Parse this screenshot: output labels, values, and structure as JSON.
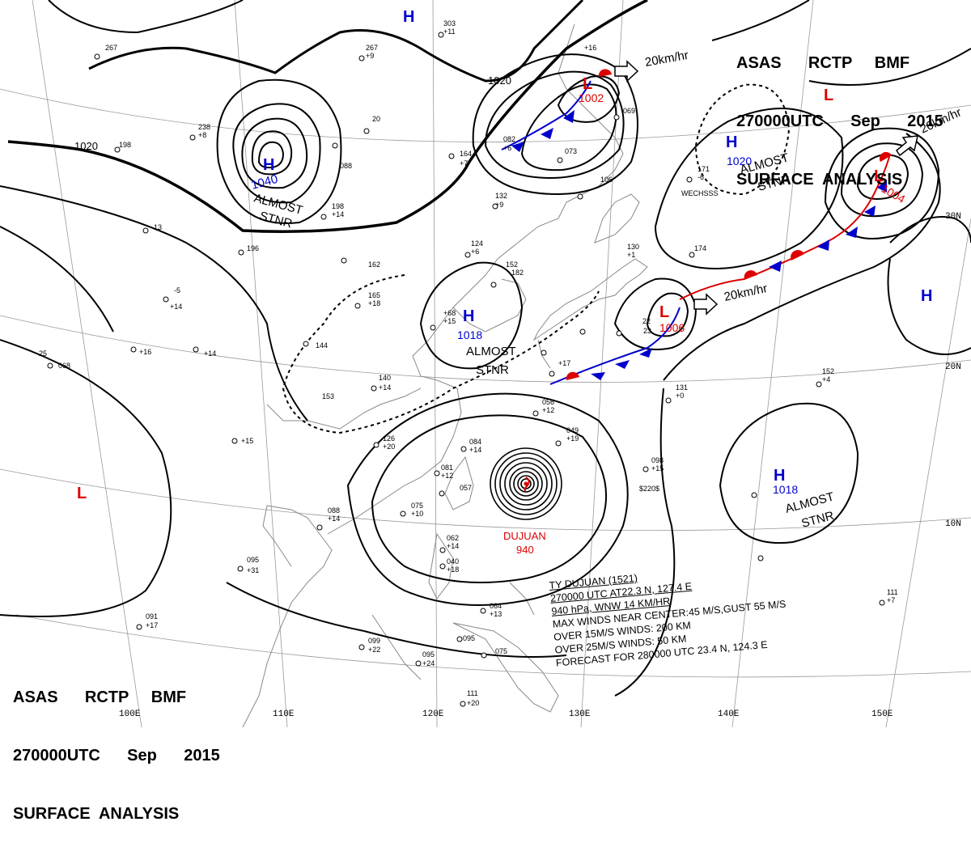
{
  "header": {
    "line1": "ASAS      RCTP     BMF",
    "line2": "270000UTC      Sep      2015",
    "line3": "SURFACE  ANALYSIS"
  },
  "typhoon": {
    "name_label": "DUJUAN",
    "pressure_label": "940",
    "info": [
      "TY  DUJUAN  (1521)",
      "270000 UTC  AT22.3 N, 127.4 E",
      "940 hPa, WNW  14 KM/HR",
      "MAX WINDS NEAR CENTER:45 M/S,GUST 55 M/S",
      "OVER 15M/S WINDS: 200 KM",
      "OVER 25M/S WINDS: 50 KM",
      "FORECAST FOR 280000 UTC 23.4 N, 124.3 E"
    ]
  },
  "pressure_systems": [
    {
      "type": "H",
      "value": "1040",
      "note": "ALMOST\nSTNR",
      "color": "#0000cc"
    },
    {
      "type": "H",
      "value": "1018",
      "note": "ALMOST\nSTNR",
      "color": "#0000cc"
    },
    {
      "type": "H",
      "value": "1020",
      "note": "ALMOST\nSTNR",
      "color": "#0000cc"
    },
    {
      "type": "H",
      "value": "1018",
      "note": "ALMOST\nSTNR",
      "color": "#0000cc"
    },
    {
      "type": "H",
      "value": "",
      "note": "",
      "color": "#0000cc"
    },
    {
      "type": "H",
      "value": "",
      "note": "",
      "color": "#0000cc"
    },
    {
      "type": "L",
      "value": "1002",
      "note": "",
      "color": "#dd0000"
    },
    {
      "type": "L",
      "value": "1004",
      "note": "",
      "color": "#dd0000"
    },
    {
      "type": "L",
      "value": "1006",
      "note": "",
      "color": "#dd0000"
    },
    {
      "type": "L",
      "value": "",
      "note": "",
      "color": "#dd0000"
    },
    {
      "type": "L",
      "value": "",
      "note": "",
      "color": "#dd0000"
    }
  ],
  "isobar_labels": [
    "1020",
    "1020"
  ],
  "motion_labels": [
    "20km/hr",
    "20km/hr",
    "20km/hr"
  ],
  "longitude_labels": [
    "100E",
    "110E",
    "120E",
    "130E",
    "140E",
    "150E"
  ],
  "latitude_labels": [
    "30N",
    "20N",
    "10N"
  ],
  "colors": {
    "high": "#0000cc",
    "low": "#dd0000",
    "front_cold": "#0000cc",
    "front_warm": "#dd0000",
    "isobar": "#000000",
    "coast": "#888888"
  }
}
